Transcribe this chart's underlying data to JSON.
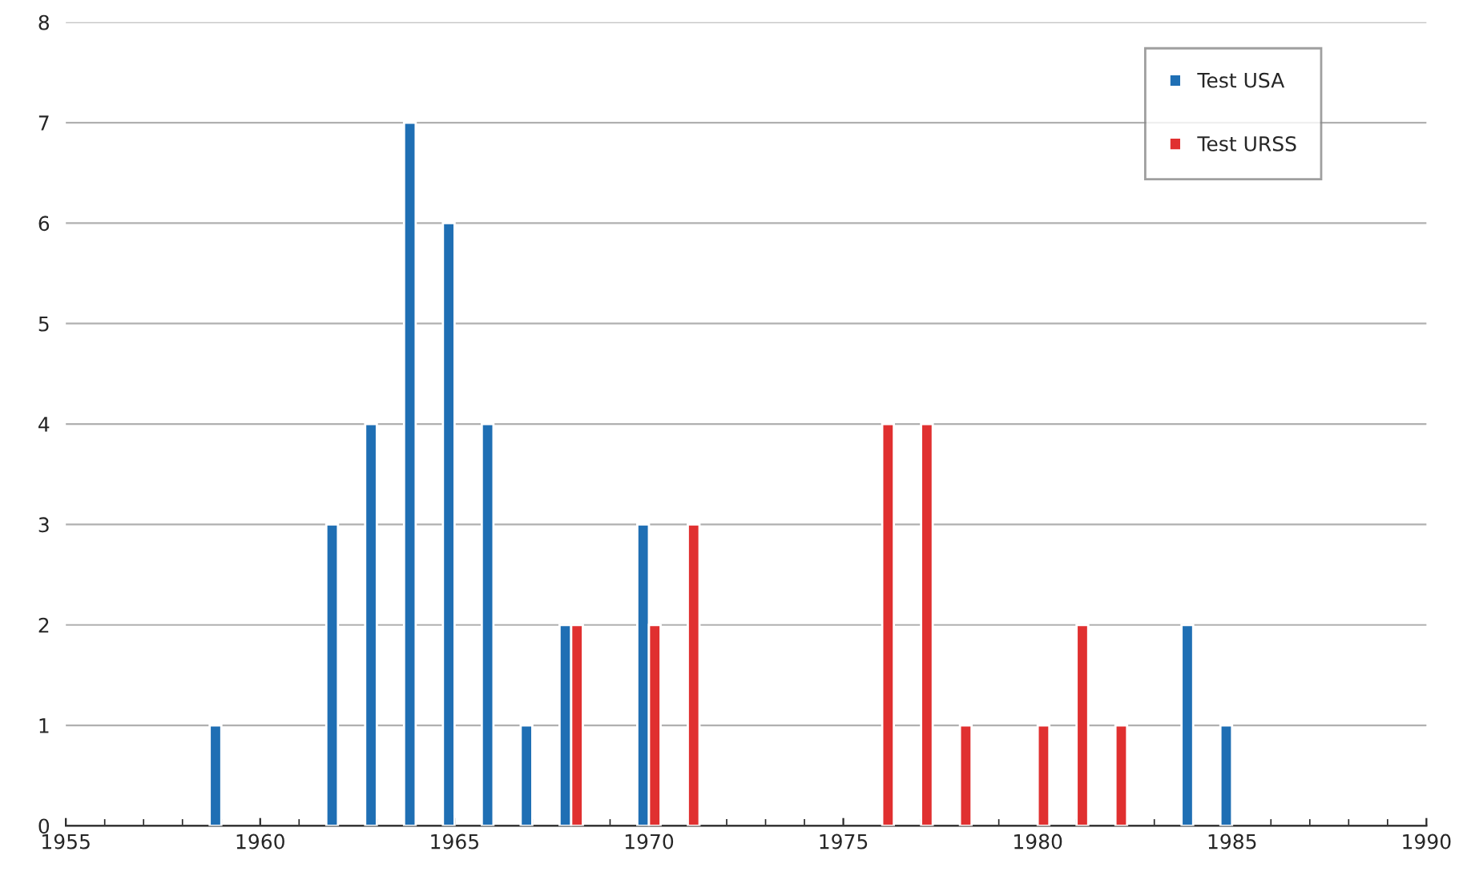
{
  "chart_data": {
    "type": "bar",
    "xlim": [
      1955,
      1990
    ],
    "xticks": [
      1955,
      1960,
      1965,
      1970,
      1975,
      1980,
      1985,
      1990
    ],
    "ylim": [
      0,
      8
    ],
    "yticks": [
      0,
      1,
      2,
      3,
      4,
      5,
      6,
      7,
      8
    ],
    "grid": "y",
    "legend": "top right",
    "series": [
      {
        "name": "Test USA",
        "color": "#1f6fb4",
        "x": [
          1959,
          1962,
          1963,
          1964,
          1965,
          1966,
          1967,
          1968,
          1970,
          1984,
          1985
        ],
        "values": [
          1,
          3,
          4,
          7,
          6,
          4,
          1,
          2,
          3,
          2,
          1
        ]
      },
      {
        "name": "Test URSS",
        "color": "#e03030",
        "x": [
          1968,
          1970,
          1971,
          1976,
          1977,
          1978,
          1980,
          1981,
          1982
        ],
        "values": [
          2,
          2,
          3,
          4,
          4,
          1,
          1,
          2,
          1
        ]
      }
    ]
  }
}
